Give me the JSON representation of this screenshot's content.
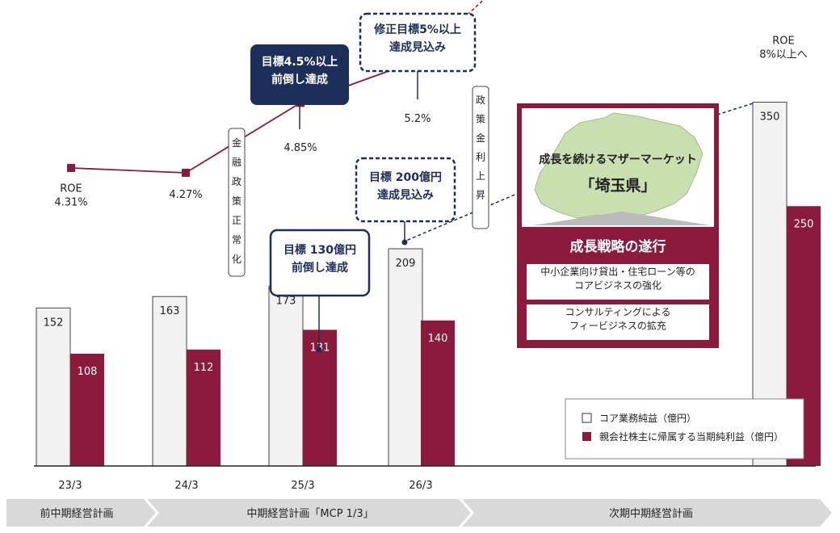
{
  "chart_data": {
    "type": "bar",
    "categories": [
      "23/3",
      "24/3",
      "25/3",
      "26/3",
      ""
    ],
    "series": [
      {
        "name": "コア業務純益（億円）",
        "values": [
          152,
          163,
          173,
          209,
          350
        ],
        "color": "#f2f2f2"
      },
      {
        "name": "親会社株主に帰属する当期純利益（億円）",
        "values": [
          108,
          112,
          131,
          140,
          250
        ],
        "color": "#8b1a3d"
      }
    ],
    "roe": {
      "values": [
        4.31,
        4.27,
        4.85,
        5.2,
        8.0
      ],
      "labels": [
        "ROE\n4.31%",
        "4.27%",
        "4.85%",
        "5.2%",
        "ROE\n8%以上へ"
      ],
      "color": "#8b1a3d"
    }
  },
  "legend": {
    "core": "コア業務純益（億円）",
    "net": "親会社株主に帰属する当期純利益（億円）"
  },
  "callouts": {
    "roe_target": "目標4.5%以上\n前倒し達成",
    "roe_revised": "修正目標5%以上\n達成見込み",
    "profit_130": "目標 130億円\n前倒し達成",
    "profit_200": "目標 200億円\n達成見込み"
  },
  "vertical_labels": {
    "monetary": "金融政策正常化",
    "rate_rise": "政策金利上昇"
  },
  "strategy_panel": {
    "market_title": "成長を続けるマザーマーケット",
    "market_name": "「埼玉県」",
    "heading": "成長戦略の遂行",
    "item1": "中小企業向け貸出・住宅ローン等の\nコアビジネスの強化",
    "item2": "コンサルティングによる\nフィービジネスの拡充"
  },
  "timeline": [
    "前中期経営計画",
    "中期経営計画「MCP 1/3」",
    "次期中期経営計画"
  ],
  "colors": {
    "accent": "#8b1a3d",
    "navy": "#1c2f5a",
    "light_bar": "#f2f2f2",
    "map_green": "#c9dfb0"
  }
}
